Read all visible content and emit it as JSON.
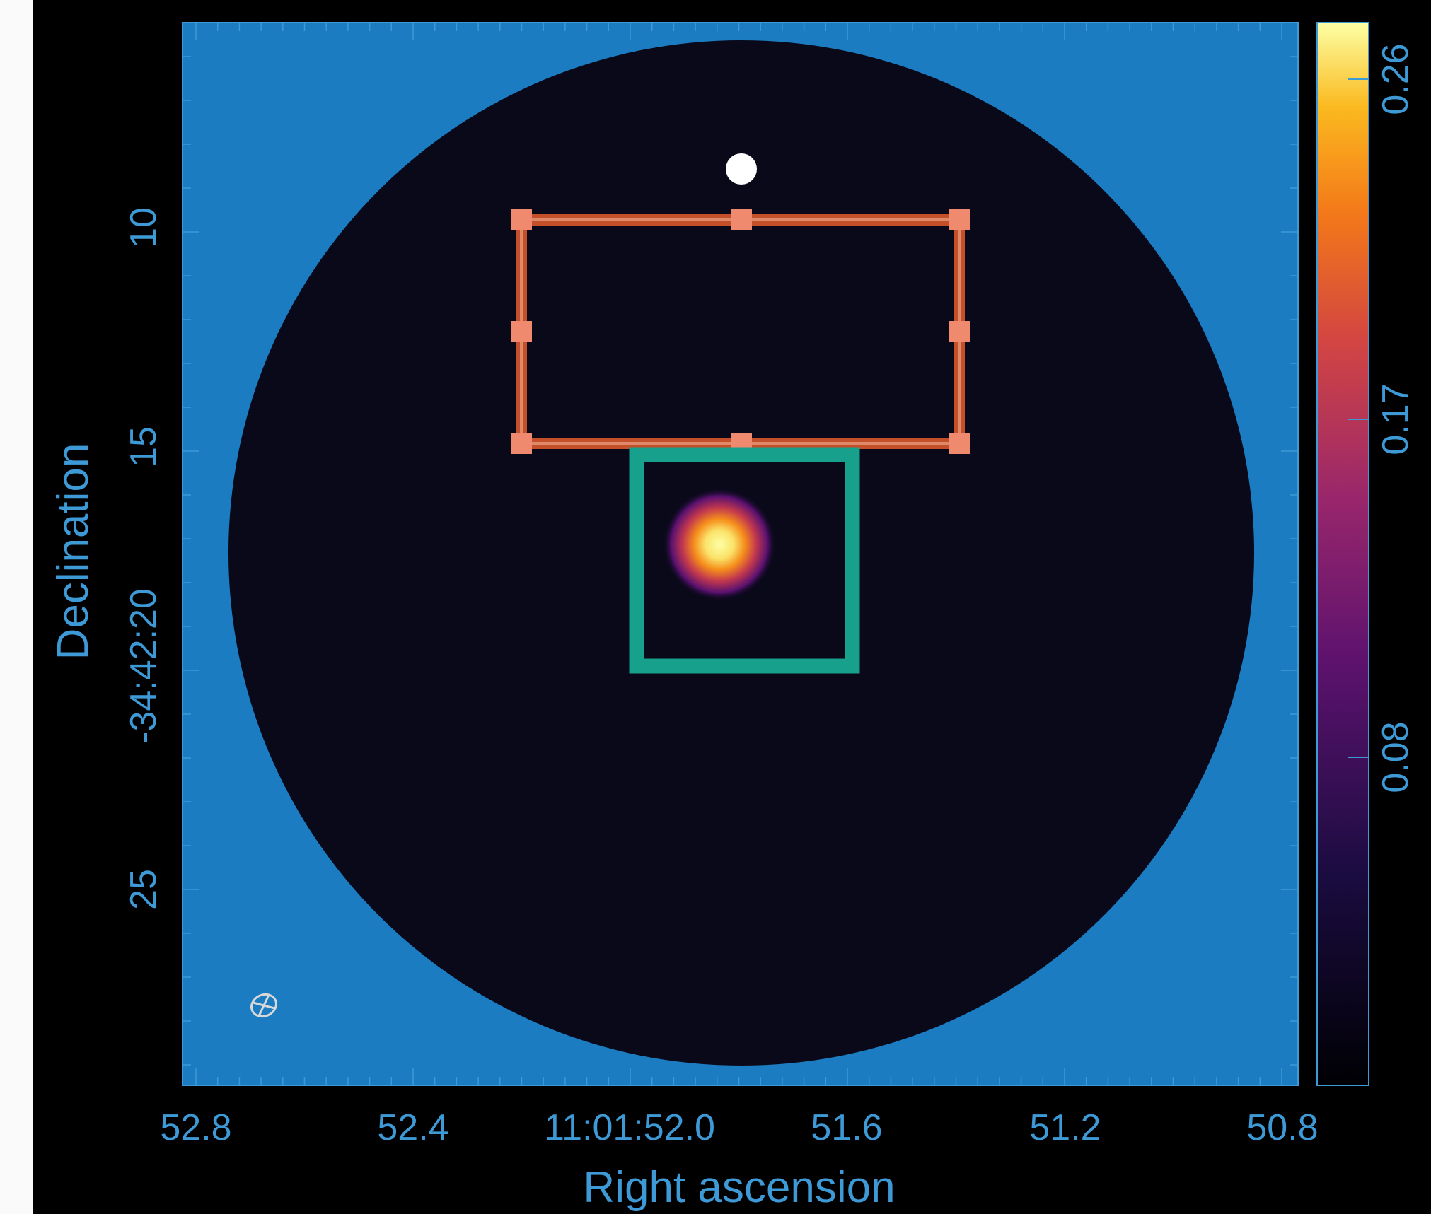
{
  "x_axis": {
    "title": "Right ascension",
    "tick_labels": [
      "52.8",
      "52.4",
      "11:01:52.0",
      "51.6",
      "51.2",
      "50.8"
    ]
  },
  "y_axis": {
    "title": "Declination",
    "tick_labels": [
      "10",
      "15",
      "-34:42:20",
      "25"
    ]
  },
  "colorbar": {
    "tick_labels": [
      "0.26",
      "0.17",
      "0.08"
    ]
  }
}
